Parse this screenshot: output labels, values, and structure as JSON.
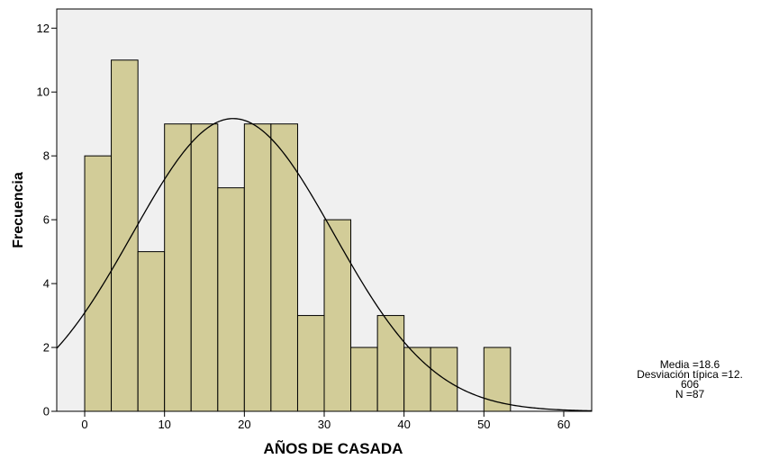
{
  "chart_data": {
    "type": "bar",
    "subtype": "histogram",
    "xlabel": "AÑOS DE CASADA",
    "ylabel": "Frecuencia",
    "xlim": [
      -3.5,
      63.5
    ],
    "ylim": [
      0,
      12.6
    ],
    "xticks": [
      0,
      10,
      20,
      30,
      40,
      50,
      60
    ],
    "yticks": [
      0,
      2,
      4,
      6,
      8,
      10,
      12
    ],
    "bin_width": 3.33,
    "bins": [
      {
        "start": 0.0,
        "end": 3.33,
        "value": 8
      },
      {
        "start": 3.33,
        "end": 6.67,
        "value": 11
      },
      {
        "start": 6.67,
        "end": 10.0,
        "value": 5
      },
      {
        "start": 10.0,
        "end": 13.33,
        "value": 9
      },
      {
        "start": 13.33,
        "end": 16.67,
        "value": 9
      },
      {
        "start": 16.67,
        "end": 20.0,
        "value": 7
      },
      {
        "start": 20.0,
        "end": 23.33,
        "value": 9
      },
      {
        "start": 23.33,
        "end": 26.67,
        "value": 9
      },
      {
        "start": 26.67,
        "end": 30.0,
        "value": 3
      },
      {
        "start": 30.0,
        "end": 33.33,
        "value": 6
      },
      {
        "start": 33.33,
        "end": 36.67,
        "value": 2
      },
      {
        "start": 36.67,
        "end": 40.0,
        "value": 3
      },
      {
        "start": 40.0,
        "end": 43.33,
        "value": 2
      },
      {
        "start": 43.33,
        "end": 46.67,
        "value": 2
      },
      {
        "start": 46.67,
        "end": 50.0,
        "value": 0
      },
      {
        "start": 50.0,
        "end": 53.33,
        "value": 2
      }
    ],
    "normal_curve": {
      "mean": 18.6,
      "sd": 12.606,
      "n": 87
    },
    "colors": {
      "bar_fill": "#d2cc98",
      "bar_stroke": "#000000",
      "plot_bg": "#f0f0f0",
      "curve": "#000000"
    },
    "grid": false,
    "legend": "none"
  },
  "stats": {
    "mean_line": "Media =18.6",
    "sd_line_1": "Desviación típica =12.",
    "sd_line_2": "606",
    "n_line": "N =87"
  }
}
